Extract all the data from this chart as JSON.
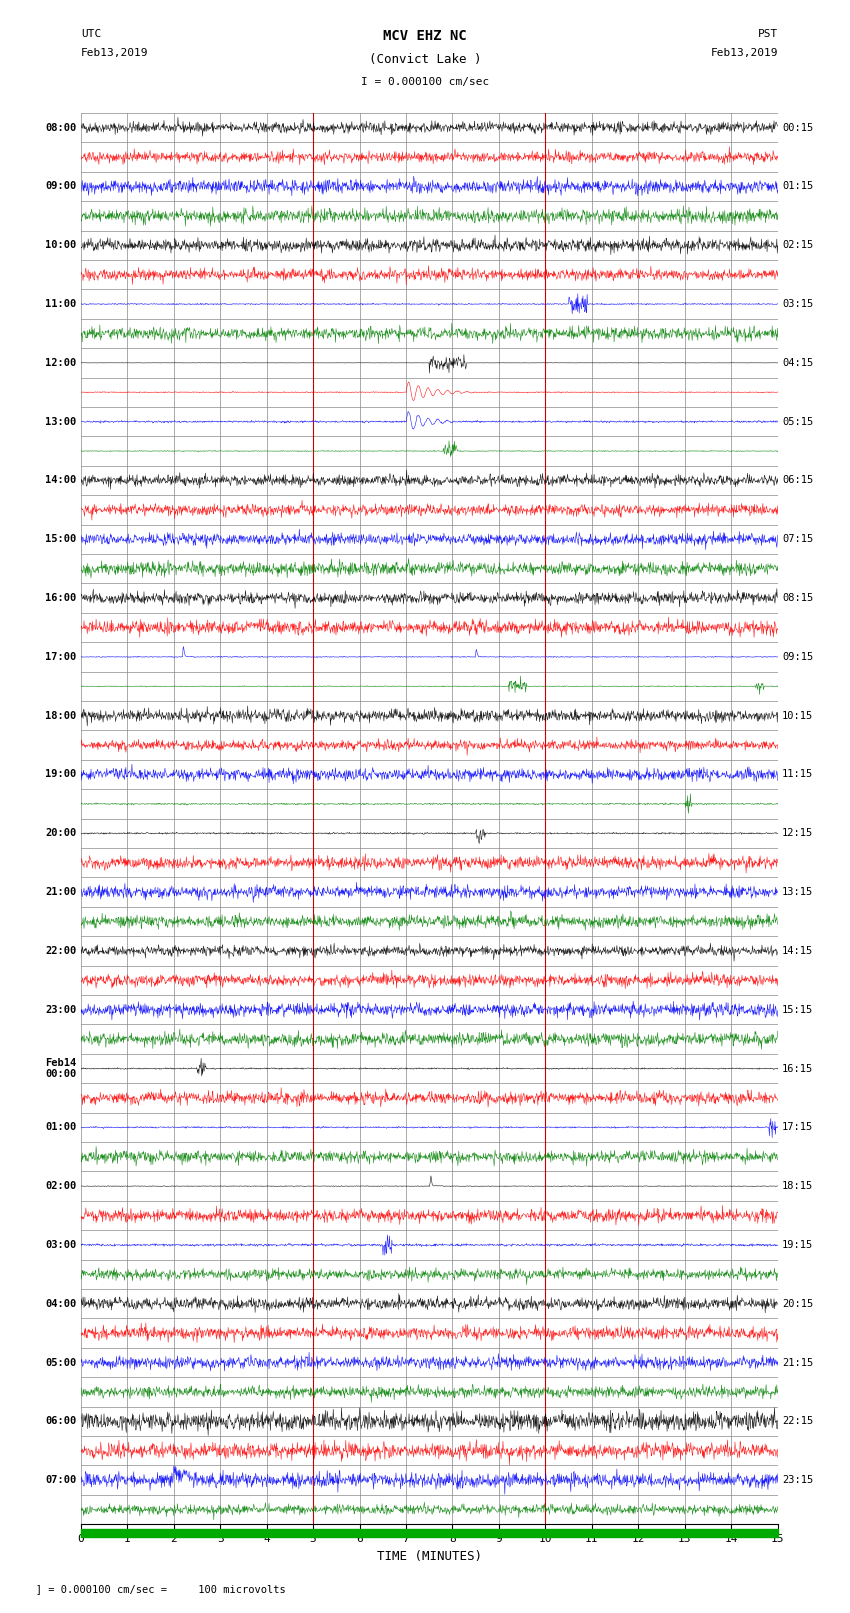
{
  "title_line1": "MCV EHZ NC",
  "title_line2": "(Convict Lake )",
  "scale_label": "I = 0.000100 cm/sec",
  "utc_label": "UTC\nFeb13,2019",
  "pst_label": "PST\nFeb13,2019",
  "bottom_label": "TIME (MINUTES)",
  "footer_label": "   ] = 0.000100 cm/sec =     100 microvolts",
  "x_ticks": [
    0,
    1,
    2,
    3,
    4,
    5,
    6,
    7,
    8,
    9,
    10,
    11,
    12,
    13,
    14,
    15
  ],
  "left_times": [
    "08:00",
    "",
    "09:00",
    "",
    "10:00",
    "",
    "11:00",
    "",
    "12:00",
    "",
    "13:00",
    "",
    "14:00",
    "",
    "15:00",
    "",
    "16:00",
    "",
    "17:00",
    "",
    "18:00",
    "",
    "19:00",
    "",
    "20:00",
    "",
    "21:00",
    "",
    "22:00",
    "",
    "23:00",
    "",
    "Feb14\n00:00",
    "",
    "01:00",
    "",
    "02:00",
    "",
    "03:00",
    "",
    "04:00",
    "",
    "05:00",
    "",
    "06:00",
    "",
    "07:00",
    ""
  ],
  "right_times": [
    "00:15",
    "",
    "01:15",
    "",
    "02:15",
    "",
    "03:15",
    "",
    "04:15",
    "",
    "05:15",
    "",
    "06:15",
    "",
    "07:15",
    "",
    "08:15",
    "",
    "09:15",
    "",
    "10:15",
    "",
    "11:15",
    "",
    "12:15",
    "",
    "13:15",
    "",
    "14:15",
    "",
    "15:15",
    "",
    "16:15",
    "",
    "17:15",
    "",
    "18:15",
    "",
    "19:15",
    "",
    "20:15",
    "",
    "21:15",
    "",
    "22:15",
    "",
    "23:15",
    ""
  ],
  "num_rows": 48,
  "minutes_per_row": 15,
  "bg_color": "#ffffff",
  "grid_color": "#888888",
  "colors_cycle": [
    "#000000",
    "#ff0000",
    "#0000ff",
    "#008000"
  ],
  "noise_amplitude": 0.08,
  "noise_seed": 42,
  "figsize": [
    8.5,
    16.13
  ],
  "dpi": 100
}
